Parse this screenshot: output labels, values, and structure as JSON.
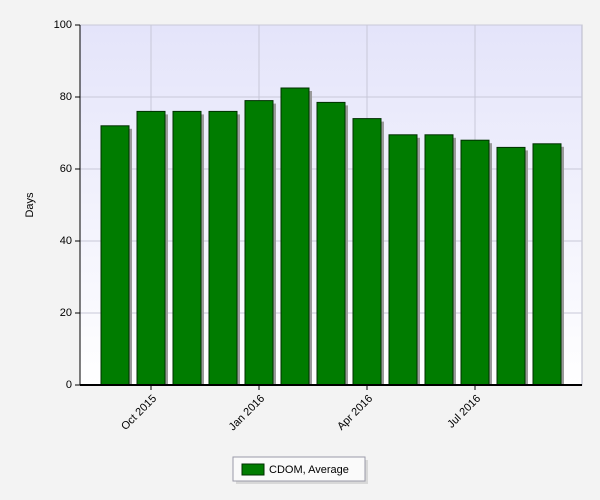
{
  "chart_data": {
    "type": "bar",
    "ylabel": "Days",
    "categories": [
      null,
      "Oct 2015",
      null,
      null,
      "Jan 2016",
      null,
      null,
      "Apr 2016",
      null,
      null,
      "Jul 2016",
      null,
      null
    ],
    "series": [
      {
        "name": "CDOM, Average",
        "color": "#007c00",
        "values": [
          72,
          76,
          76,
          76,
          79,
          82.5,
          78.5,
          74,
          69.5,
          69.5,
          68,
          66,
          67
        ]
      }
    ],
    "ylim": [
      0,
      100
    ],
    "yticks": [
      0,
      20,
      40,
      60,
      80,
      100
    ],
    "grid": true
  }
}
